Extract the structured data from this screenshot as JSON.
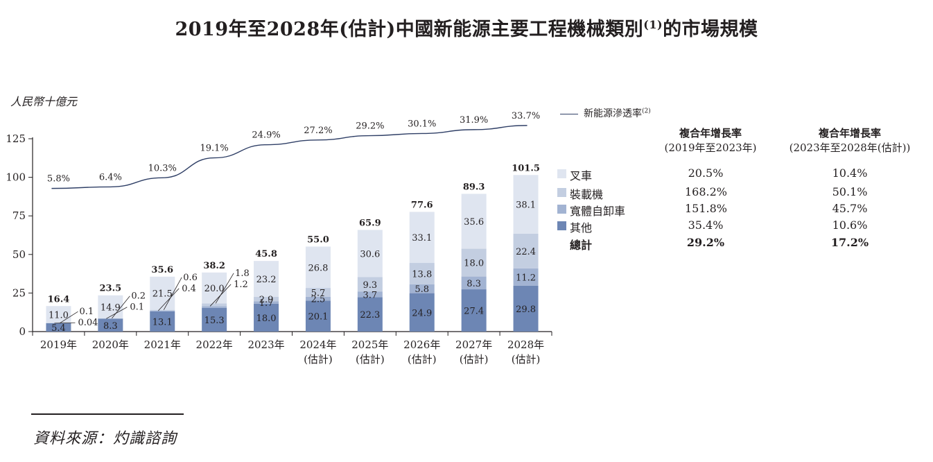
{
  "title": "2019年至2028年(估計)中國新能源主要工程機械類別",
  "title_sup": "(1)",
  "title_suffix": "的市場規模",
  "unit_label": "人民幣十億元",
  "line_legend": "新能源滲透率",
  "line_legend_sup": "(2)",
  "cagr_headers": {
    "col1_title": "複合年增長率",
    "col1_sub": "(2019年至2023年)",
    "col2_title": "複合年增長率",
    "col2_sub": "(2023年至2028年(估計))"
  },
  "legend_rows": [
    {
      "label": "叉車",
      "cagr1": "20.5%",
      "cagr2": "10.4%",
      "color": "#dfe5f0"
    },
    {
      "label": "裝載機",
      "cagr1": "168.2%",
      "cagr2": "50.1%",
      "color": "#c3cee1"
    },
    {
      "label": "寬體自卸車",
      "cagr1": "151.8%",
      "cagr2": "45.7%",
      "color": "#a2b3d2"
    },
    {
      "label": "其他",
      "cagr1": "35.4%",
      "cagr2": "10.6%",
      "color": "#6d86b4"
    },
    {
      "label": "總計",
      "cagr1": "29.2%",
      "cagr2": "17.2%"
    }
  ],
  "source": "資料來源：灼識諮詢",
  "chart_data": {
    "type": "bar",
    "stacked": true,
    "categories": [
      "2019年",
      "2020年",
      "2021年",
      "2022年",
      "2023年",
      "2024年",
      "2025年",
      "2026年",
      "2027年",
      "2028年"
    ],
    "category_sublabels": [
      "",
      "",
      "",
      "",
      "",
      "(估計)",
      "(估計)",
      "(估計)",
      "(估計)",
      "(估計)"
    ],
    "series": [
      {
        "name": "其他",
        "values": [
          5.4,
          8.3,
          13.1,
          15.3,
          18.0,
          20.1,
          22.3,
          24.9,
          27.4,
          29.8
        ],
        "color": "#6d86b4"
      },
      {
        "name": "寬體自卸車",
        "values": [
          0.04,
          0.1,
          0.4,
          1.2,
          1.7,
          2.5,
          3.7,
          5.8,
          8.3,
          11.2
        ],
        "color": "#a2b3d2"
      },
      {
        "name": "裝載機",
        "values": [
          0.1,
          0.2,
          0.6,
          1.8,
          2.9,
          5.7,
          9.3,
          13.8,
          18.0,
          22.4
        ],
        "color": "#c3cee1"
      },
      {
        "name": "叉車",
        "values": [
          11.0,
          14.9,
          21.5,
          20.0,
          23.2,
          26.8,
          30.6,
          33.1,
          35.6,
          38.1
        ],
        "color": "#dfe5f0"
      }
    ],
    "totals": [
      16.4,
      23.5,
      35.6,
      38.2,
      45.8,
      55.0,
      65.9,
      77.6,
      89.3,
      101.5
    ],
    "segment_labels": [
      [
        "5.4",
        "0.04",
        "0.1",
        "11.0"
      ],
      [
        "8.3",
        "0.1",
        "0.2",
        "14.9"
      ],
      [
        "13.1",
        "0.4",
        "0.6",
        "21.5"
      ],
      [
        "15.3",
        "1.2",
        "1.8",
        "20.0"
      ],
      [
        "18.0",
        "1.7",
        "2.9",
        "23.2"
      ],
      [
        "20.1",
        "2.5",
        "5.7",
        "26.8"
      ],
      [
        "22.3",
        "3.7",
        "9.3",
        "30.6"
      ],
      [
        "24.9",
        "5.8",
        "13.8",
        "33.1"
      ],
      [
        "27.4",
        "8.3",
        "18.0",
        "35.6"
      ],
      [
        "29.8",
        "11.2",
        "22.4",
        "38.1"
      ]
    ],
    "line_series": {
      "name": "新能源滲透率",
      "values": [
        5.8,
        6.4,
        10.3,
        19.1,
        24.9,
        27.2,
        29.2,
        30.1,
        31.9,
        33.7
      ],
      "labels": [
        "5.8%",
        "6.4%",
        "10.3%",
        "19.1%",
        "24.9%",
        "27.2%",
        "29.2%",
        "30.1%",
        "31.9%",
        "33.7%"
      ],
      "plotted_on_left_axis": [
        92.8,
        93.8,
        99.7,
        112.6,
        121.1,
        124.2,
        127.0,
        128.4,
        130.9,
        133.6
      ]
    },
    "y_axis": {
      "min": 0,
      "max": 125,
      "ticks": [
        0,
        25,
        50,
        75,
        100,
        125
      ]
    },
    "ylabel": "人民幣十億元",
    "legend_position": "right"
  }
}
